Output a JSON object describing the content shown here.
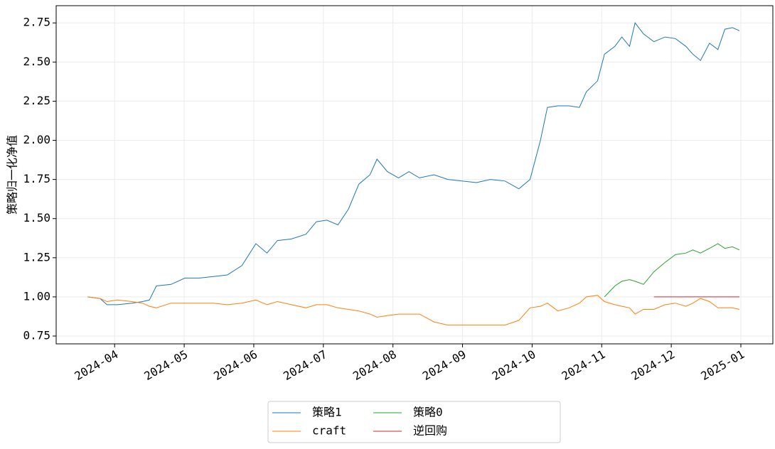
{
  "chart_data": {
    "type": "line",
    "y_label": "策略归一化净值",
    "x": [
      3.61,
      3.79,
      3.89,
      4.04,
      4.25,
      4.4,
      4.5,
      4.6,
      4.81,
      5.01,
      5.22,
      5.42,
      5.62,
      5.83,
      6.03,
      6.19,
      6.34,
      6.54,
      6.75,
      6.9,
      7.05,
      7.21,
      7.36,
      7.51,
      7.67,
      7.77,
      7.92,
      8.08,
      8.23,
      8.38,
      8.59,
      8.79,
      8.99,
      9.2,
      9.4,
      9.61,
      9.81,
      9.97,
      10.12,
      10.22,
      10.37,
      10.53,
      10.68,
      10.78,
      10.94,
      11.04,
      11.19,
      11.29,
      11.4,
      11.48,
      11.6,
      11.75,
      11.91,
      12.06,
      12.21,
      12.31,
      12.42,
      12.55,
      12.67,
      12.77,
      12.88,
      12.98
    ],
    "series": [
      {
        "name": "策略1",
        "color": "#1f77b4",
        "values": [
          1.0,
          0.99,
          0.95,
          0.95,
          0.96,
          0.97,
          0.98,
          1.07,
          1.08,
          1.12,
          1.12,
          1.13,
          1.14,
          1.2,
          1.34,
          1.28,
          1.36,
          1.37,
          1.4,
          1.48,
          1.49,
          1.46,
          1.56,
          1.72,
          1.78,
          1.88,
          1.8,
          1.76,
          1.8,
          1.76,
          1.78,
          1.75,
          1.74,
          1.73,
          1.75,
          1.74,
          1.69,
          1.75,
          2.0,
          2.21,
          2.22,
          2.22,
          2.21,
          2.31,
          2.38,
          2.55,
          2.6,
          2.66,
          2.6,
          2.75,
          2.68,
          2.63,
          2.66,
          2.65,
          2.6,
          2.55,
          2.51,
          2.62,
          2.58,
          2.71,
          2.72,
          2.7
        ]
      },
      {
        "name": "craft",
        "color": "#ff7f0e",
        "values": [
          1.0,
          0.99,
          0.97,
          0.98,
          0.97,
          0.96,
          0.94,
          0.93,
          0.96,
          0.96,
          0.96,
          0.96,
          0.95,
          0.96,
          0.98,
          0.95,
          0.97,
          0.95,
          0.93,
          0.95,
          0.95,
          0.93,
          0.92,
          0.91,
          0.89,
          0.87,
          0.88,
          0.89,
          0.89,
          0.89,
          0.84,
          0.82,
          0.82,
          0.82,
          0.82,
          0.82,
          0.85,
          0.93,
          0.94,
          0.96,
          0.91,
          0.93,
          0.96,
          1.0,
          1.01,
          0.97,
          0.95,
          0.94,
          0.93,
          0.89,
          0.92,
          0.92,
          0.95,
          0.96,
          0.94,
          0.96,
          0.99,
          0.97,
          0.93,
          0.93,
          0.93,
          0.92
        ]
      },
      {
        "name": "策略0",
        "color": "#2ca02c",
        "values": [
          null,
          null,
          null,
          null,
          null,
          null,
          null,
          null,
          null,
          null,
          null,
          null,
          null,
          null,
          null,
          null,
          null,
          null,
          null,
          null,
          null,
          null,
          null,
          null,
          null,
          null,
          null,
          null,
          null,
          null,
          null,
          null,
          null,
          null,
          null,
          null,
          null,
          null,
          null,
          null,
          null,
          null,
          null,
          null,
          null,
          1.0,
          1.07,
          1.1,
          1.11,
          1.1,
          1.08,
          1.16,
          1.22,
          1.27,
          1.28,
          1.3,
          1.28,
          1.31,
          1.34,
          1.31,
          1.32,
          1.3
        ]
      },
      {
        "name": "逆回购",
        "color": "#d62728",
        "values": [
          null,
          null,
          null,
          null,
          null,
          null,
          null,
          null,
          null,
          null,
          null,
          null,
          null,
          null,
          null,
          null,
          null,
          null,
          null,
          null,
          null,
          null,
          null,
          null,
          null,
          null,
          null,
          null,
          null,
          null,
          null,
          null,
          null,
          null,
          null,
          null,
          null,
          null,
          null,
          null,
          null,
          null,
          null,
          null,
          null,
          null,
          null,
          null,
          null,
          null,
          null,
          1.0,
          1.0,
          1.0,
          1.0,
          1.0,
          1.0,
          1.0,
          1.0,
          1.0,
          1.0,
          1.0
        ]
      }
    ],
    "xlim": [
      3.16,
      13.46
    ],
    "xticks": [
      {
        "value": 4,
        "label": "2024-04"
      },
      {
        "value": 5,
        "label": "2024-05"
      },
      {
        "value": 6,
        "label": "2024-06"
      },
      {
        "value": 7,
        "label": "2024-07"
      },
      {
        "value": 8,
        "label": "2024-08"
      },
      {
        "value": 9,
        "label": "2024-09"
      },
      {
        "value": 10,
        "label": "2024-10"
      },
      {
        "value": 11,
        "label": "2024-11"
      },
      {
        "value": 12,
        "label": "2024-12"
      },
      {
        "value": 13,
        "label": "2025-01"
      }
    ],
    "ylim": [
      0.7,
      2.86
    ],
    "yticks": [
      {
        "value": 0.75,
        "label": "0.75"
      },
      {
        "value": 1.0,
        "label": "1.00"
      },
      {
        "value": 1.25,
        "label": "1.25"
      },
      {
        "value": 1.5,
        "label": "1.50"
      },
      {
        "value": 1.75,
        "label": "1.75"
      },
      {
        "value": 2.0,
        "label": "2.00"
      },
      {
        "value": 2.25,
        "label": "2.25"
      },
      {
        "value": 2.5,
        "label": "2.50"
      },
      {
        "value": 2.75,
        "label": "2.75"
      }
    ],
    "grid": true,
    "legend": "bottom"
  }
}
